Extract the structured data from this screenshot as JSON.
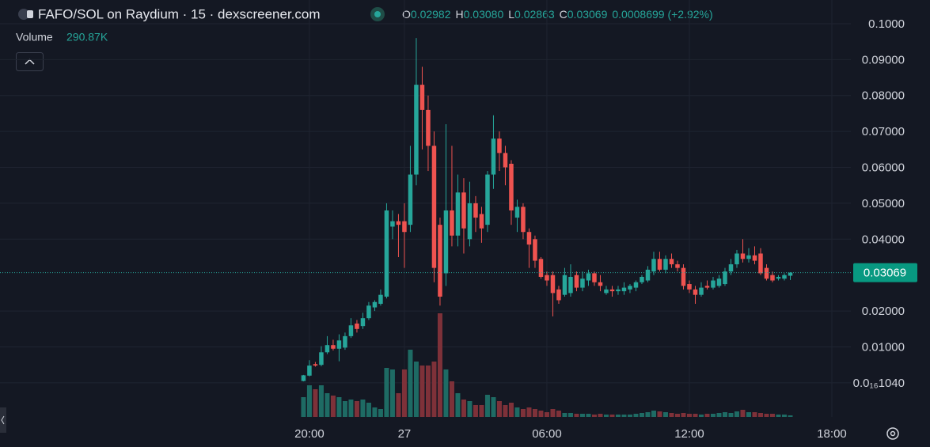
{
  "chart_data": {
    "type": "candlestick",
    "title": "FAFO/SOL on Raydium · 15 · dexscreener.com",
    "header": [
      {
        "key": "O",
        "text": "0.02982"
      },
      {
        "key": "H",
        "text": "0.03080"
      },
      {
        "key": "L",
        "text": "0.02863"
      },
      {
        "key": "C",
        "text": "0.03069"
      }
    ],
    "change_text": "0.0008699 (+2.92%)",
    "up_color": "#26a69a",
    "down_color": "#ef5350",
    "volume_up_color": "#1e6b64",
    "volume_down_color": "#7e3139",
    "x": [
      19.75,
      20,
      20.25,
      20.5,
      20.75,
      21,
      21.25,
      21.5,
      21.75,
      22,
      22.25,
      22.5,
      22.75,
      23,
      23.25,
      23.5,
      23.75,
      24,
      24.25,
      24.5,
      24.75,
      25,
      25.25,
      25.5,
      25.75,
      26,
      26.25,
      26.5,
      26.75,
      27,
      27.25,
      27.5,
      27.75,
      28,
      28.25,
      28.5,
      28.75,
      29,
      29.25,
      29.5,
      29.75,
      30,
      30.25,
      30.5,
      30.75,
      31,
      31.25,
      31.5,
      31.75,
      32,
      32.25,
      32.5,
      32.75,
      33,
      33.25,
      33.5,
      33.75,
      34,
      34.25,
      34.5,
      34.75,
      35,
      35.25,
      35.5,
      35.75,
      36,
      36.25,
      36.5,
      36.75,
      37,
      37.25,
      37.5,
      37.75,
      38,
      38.25,
      38.5,
      38.75,
      39,
      39.25,
      39.5,
      39.75,
      40,
      40.25
    ],
    "open": [
      0.0005,
      0.002,
      0.0052,
      0.005,
      0.0085,
      0.0105,
      0.0095,
      0.0098,
      0.013,
      0.0165,
      0.0158,
      0.018,
      0.021,
      0.022,
      0.024,
      0.0435,
      0.045,
      0.045,
      0.044,
      0.058,
      0.083,
      0.076,
      0.066,
      0.044,
      0.0305,
      0.048,
      0.041,
      0.053,
      0.04,
      0.05,
      0.047,
      0.044,
      0.058,
      0.068,
      0.064,
      0.061,
      0.046,
      0.049,
      0.042,
      0.04,
      0.0345,
      0.03,
      0.03,
      0.026,
      0.0245,
      0.025,
      0.03,
      0.0265,
      0.0285,
      0.0305,
      0.028,
      0.025,
      0.026,
      0.0255,
      0.0255,
      0.026,
      0.0265,
      0.028,
      0.0285,
      0.031,
      0.0345,
      0.0315,
      0.0345,
      0.033,
      0.032,
      0.0275,
      0.026,
      0.0245,
      0.027,
      0.0265,
      0.027,
      0.0275,
      0.031,
      0.033,
      0.036,
      0.0345,
      0.0355,
      0.036,
      0.032,
      0.03,
      0.029,
      0.029,
      0.02982
    ],
    "high": [
      0.0022,
      0.0063,
      0.0058,
      0.0102,
      0.013,
      0.012,
      0.0135,
      0.014,
      0.018,
      0.0175,
      0.0195,
      0.0225,
      0.023,
      0.026,
      0.05,
      0.048,
      0.047,
      0.05,
      0.066,
      0.096,
      0.088,
      0.08,
      0.07,
      0.046,
      0.072,
      0.066,
      0.058,
      0.057,
      0.056,
      0.052,
      0.049,
      0.059,
      0.0745,
      0.07,
      0.066,
      0.062,
      0.051,
      0.05,
      0.043,
      0.041,
      0.035,
      0.031,
      0.031,
      0.027,
      0.032,
      0.033,
      0.031,
      0.031,
      0.0315,
      0.031,
      0.03,
      0.027,
      0.027,
      0.027,
      0.028,
      0.0275,
      0.0285,
      0.03,
      0.0325,
      0.0365,
      0.0365,
      0.0355,
      0.036,
      0.034,
      0.033,
      0.0285,
      0.027,
      0.028,
      0.0285,
      0.0295,
      0.03,
      0.032,
      0.0345,
      0.037,
      0.04,
      0.0375,
      0.038,
      0.0375,
      0.033,
      0.031,
      0.03,
      0.0305,
      0.0308
    ],
    "low": [
      0.0004,
      0.0018,
      0.0045,
      0.0046,
      0.008,
      0.009,
      0.006,
      0.0092,
      0.0125,
      0.014,
      0.015,
      0.0175,
      0.02,
      0.0215,
      0.0235,
      0.04,
      0.035,
      0.032,
      0.042,
      0.055,
      0.065,
      0.059,
      0.028,
      0.0215,
      0.027,
      0.038,
      0.038,
      0.036,
      0.038,
      0.042,
      0.039,
      0.042,
      0.054,
      0.059,
      0.055,
      0.044,
      0.042,
      0.04,
      0.032,
      0.032,
      0.029,
      0.027,
      0.0185,
      0.022,
      0.024,
      0.024,
      0.0255,
      0.0255,
      0.027,
      0.027,
      0.0255,
      0.0245,
      0.024,
      0.0245,
      0.0245,
      0.025,
      0.0255,
      0.0275,
      0.028,
      0.03,
      0.031,
      0.0305,
      0.032,
      0.031,
      0.026,
      0.025,
      0.022,
      0.024,
      0.026,
      0.026,
      0.0265,
      0.027,
      0.03,
      0.032,
      0.0335,
      0.0335,
      0.033,
      0.03,
      0.0285,
      0.028,
      0.0285,
      0.0285,
      0.02863
    ],
    "close": [
      0.0021,
      0.0048,
      0.0048,
      0.0085,
      0.0105,
      0.0095,
      0.0118,
      0.013,
      0.016,
      0.015,
      0.018,
      0.0215,
      0.0225,
      0.0245,
      0.048,
      0.045,
      0.044,
      0.042,
      0.058,
      0.083,
      0.076,
      0.066,
      0.032,
      0.024,
      0.048,
      0.041,
      0.053,
      0.043,
      0.05,
      0.046,
      0.043,
      0.058,
      0.068,
      0.064,
      0.06,
      0.048,
      0.049,
      0.042,
      0.0385,
      0.034,
      0.0295,
      0.0285,
      0.025,
      0.023,
      0.03,
      0.0295,
      0.0265,
      0.029,
      0.0305,
      0.028,
      0.027,
      0.026,
      0.0255,
      0.026,
      0.0265,
      0.027,
      0.028,
      0.0295,
      0.0315,
      0.0345,
      0.0315,
      0.0345,
      0.033,
      0.032,
      0.027,
      0.026,
      0.0245,
      0.0265,
      0.0265,
      0.0285,
      0.029,
      0.031,
      0.033,
      0.036,
      0.0345,
      0.0355,
      0.034,
      0.0305,
      0.029,
      0.0285,
      0.0295,
      0.03,
      0.03069
    ],
    "volume": {
      "title": "Volume",
      "last_value_label": "290.87K",
      "values": [
        3625000,
        5800000,
        5075000,
        5800000,
        4350000,
        3915000,
        3625000,
        2900000,
        3190000,
        2900000,
        3190000,
        2610000,
        1740000,
        1450000,
        8990000,
        8700000,
        4350000,
        8700000,
        12325000,
        10150000,
        9425000,
        9425000,
        10150000,
        18995000,
        8700000,
        6525000,
        4350000,
        3190000,
        2900000,
        2175000,
        2175000,
        4060000,
        3625000,
        2900000,
        2175000,
        2610000,
        1740000,
        1450000,
        1740000,
        1450000,
        1160000,
        870000,
        1450000,
        1160000,
        725000,
        725000,
        580000,
        580000,
        580000,
        435000,
        580000,
        435000,
        435000,
        435000,
        435000,
        435000,
        580000,
        725000,
        870000,
        1160000,
        1015000,
        870000,
        725000,
        580000,
        725000,
        580000,
        580000,
        435000,
        580000,
        580000,
        725000,
        870000,
        725000,
        1015000,
        1305000,
        870000,
        870000,
        725000,
        580000,
        580000,
        435000,
        435000,
        290870
      ]
    },
    "price_line": {
      "value": 0.03069,
      "label": "0.03069"
    },
    "xlim": [
      6.97,
      42.8
    ],
    "xticks": [
      {
        "value": 20,
        "label": "20:00"
      },
      {
        "value": 24,
        "label": "27"
      },
      {
        "value": 30,
        "label": "06:00"
      },
      {
        "value": 36,
        "label": "12:00"
      },
      {
        "value": 42,
        "label": "18:00"
      }
    ],
    "ylim": [
      -0.0095,
      0.1066
    ],
    "yticks": [
      {
        "value": 1.04e-17,
        "label": "0.0₁₆1040"
      },
      {
        "value": 0.01,
        "label": "0.01000"
      },
      {
        "value": 0.02,
        "label": "0.02000"
      },
      {
        "value": 0.04,
        "label": "0.04000"
      },
      {
        "value": 0.05,
        "label": "0.05000"
      },
      {
        "value": 0.06,
        "label": "0.06000"
      },
      {
        "value": 0.07,
        "label": "0.07000"
      },
      {
        "value": 0.08,
        "label": "0.08000"
      },
      {
        "value": 0.09,
        "label": "0.09000"
      },
      {
        "value": 0.1,
        "label": "0.1000"
      }
    ],
    "grid": true
  }
}
